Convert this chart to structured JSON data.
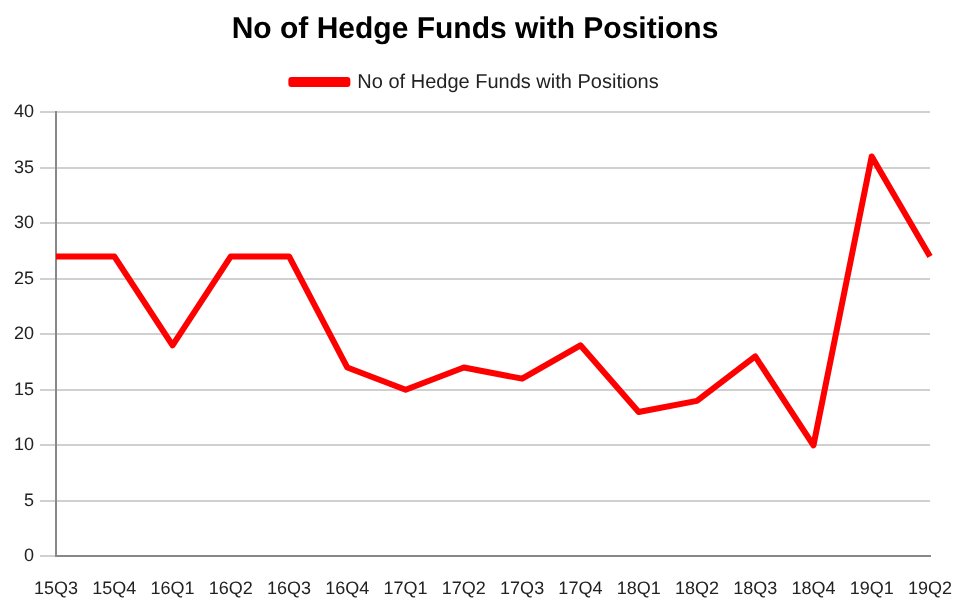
{
  "chart_data": {
    "type": "line",
    "title": "No of Hedge Funds with Positions",
    "categories": [
      "15Q3",
      "15Q4",
      "16Q1",
      "16Q2",
      "16Q3",
      "16Q4",
      "17Q1",
      "17Q2",
      "17Q3",
      "17Q4",
      "18Q1",
      "18Q2",
      "18Q3",
      "18Q4",
      "19Q1",
      "19Q2"
    ],
    "series": [
      {
        "name": "No of Hedge Funds with Positions",
        "color": "#ff0000",
        "values": [
          27,
          27,
          19,
          27,
          27,
          17,
          15,
          17,
          16,
          19,
          13,
          14,
          18,
          10,
          36,
          27
        ]
      }
    ],
    "ylim": [
      0,
      40
    ],
    "yticks": [
      0,
      5,
      10,
      15,
      20,
      25,
      30,
      35,
      40
    ],
    "grid": "y",
    "legend": "top",
    "marker": "none",
    "line_style": "solid"
  }
}
